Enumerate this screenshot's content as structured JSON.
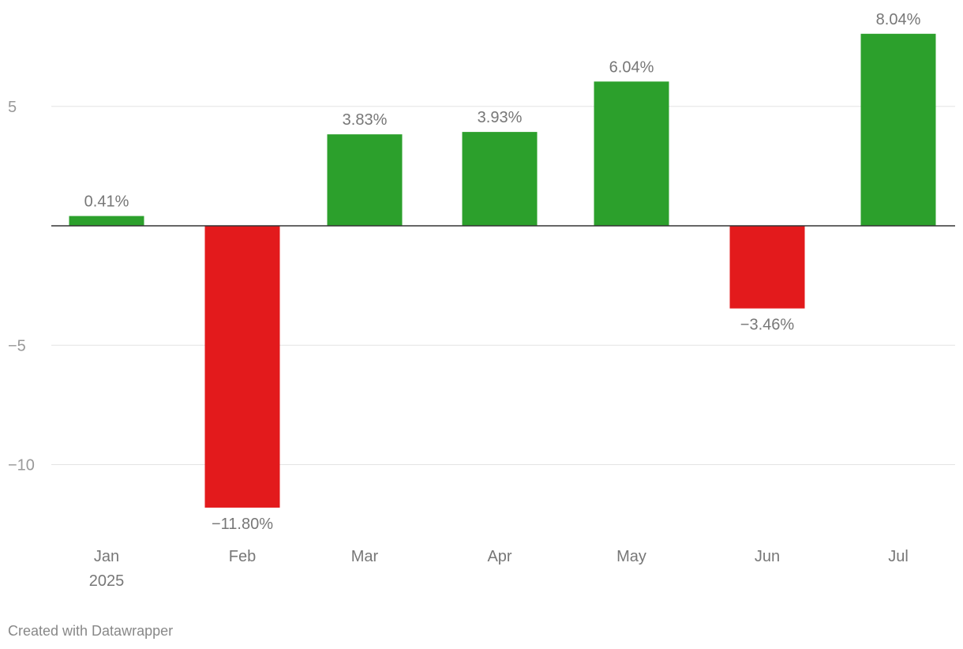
{
  "chart_data": {
    "type": "bar",
    "title": "",
    "xlabel": "",
    "ylabel": "",
    "categories": [
      "Jan",
      "Feb",
      "Mar",
      "Apr",
      "May",
      "Jun",
      "Jul"
    ],
    "year_label": "2025",
    "values": [
      0.41,
      -11.8,
      3.83,
      3.93,
      6.04,
      -3.46,
      8.04
    ],
    "data_labels": [
      "0.41%",
      "−11.80%",
      "3.83%",
      "3.93%",
      "6.04%",
      "−3.46%",
      "8.04%"
    ],
    "yticks": [
      5,
      -5,
      -10
    ],
    "ytick_labels": [
      "5",
      "−5",
      "−10"
    ],
    "ylim": [
      -13,
      9
    ],
    "grid": true,
    "colors": {
      "positive": "#2ca02c",
      "negative": "#e31a1c"
    }
  },
  "footer": "Created with Datawrapper"
}
